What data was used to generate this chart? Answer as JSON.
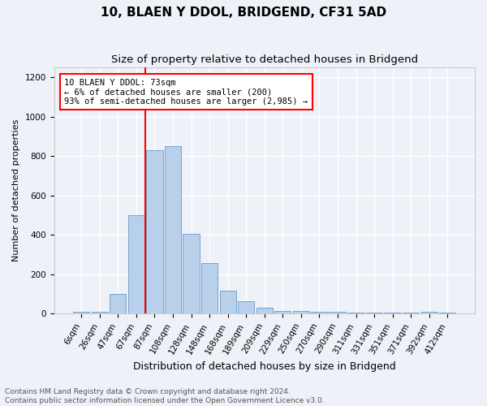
{
  "title": "10, BLAEN Y DDOL, BRIDGEND, CF31 5AD",
  "subtitle": "Size of property relative to detached houses in Bridgend",
  "xlabel": "Distribution of detached houses by size in Bridgend",
  "ylabel": "Number of detached properties",
  "categories": [
    "6sqm",
    "26sqm",
    "47sqm",
    "67sqm",
    "87sqm",
    "108sqm",
    "128sqm",
    "148sqm",
    "168sqm",
    "189sqm",
    "209sqm",
    "229sqm",
    "250sqm",
    "270sqm",
    "290sqm",
    "311sqm",
    "331sqm",
    "351sqm",
    "371sqm",
    "392sqm",
    "412sqm"
  ],
  "values": [
    10,
    10,
    100,
    500,
    830,
    850,
    405,
    255,
    115,
    65,
    30,
    15,
    15,
    10,
    10,
    5,
    5,
    5,
    5,
    10,
    5
  ],
  "bar_color": "#b8d0ea",
  "bar_edge_color": "#6699cc",
  "vline_x": 3.5,
  "vline_color": "red",
  "annotation_text": "10 BLAEN Y DDOL: 73sqm\n← 6% of detached houses are smaller (200)\n93% of semi-detached houses are larger (2,985) →",
  "annotation_box_color": "white",
  "annotation_box_edge_color": "red",
  "ylim": [
    0,
    1250
  ],
  "yticks": [
    0,
    200,
    400,
    600,
    800,
    1000,
    1200
  ],
  "footer_line1": "Contains HM Land Registry data © Crown copyright and database right 2024.",
  "footer_line2": "Contains public sector information licensed under the Open Government Licence v3.0.",
  "background_color": "#eef2f8",
  "grid_color": "white",
  "title_fontsize": 11,
  "subtitle_fontsize": 9.5,
  "xlabel_fontsize": 9,
  "ylabel_fontsize": 8,
  "tick_fontsize": 7.5,
  "footer_fontsize": 6.5,
  "annot_fontsize": 7.5
}
